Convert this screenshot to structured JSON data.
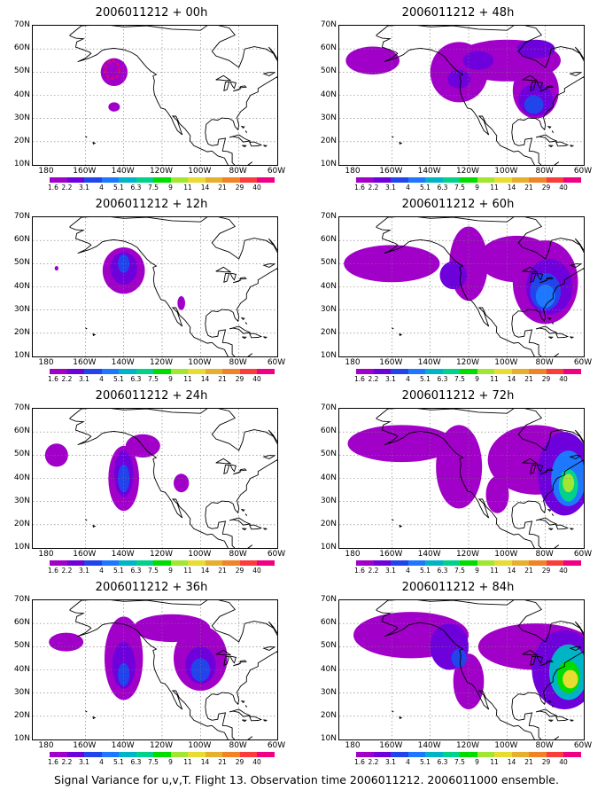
{
  "caption": "Signal Variance for u,v,T. Flight 13. Observation time 2006011212. 2006011000 ensemble.",
  "y_ticks": [
    "70N",
    "60N",
    "50N",
    "40N",
    "30N",
    "20N",
    "10N"
  ],
  "x_ticks": [
    "180",
    "160W",
    "140W",
    "120W",
    "100W",
    "80W",
    "60W"
  ],
  "colorbar": {
    "labels": [
      "1.6",
      "2.2",
      "3.1",
      "4",
      "5.1",
      "6.3",
      "7.5",
      "9",
      "11",
      "14",
      "21",
      "29",
      "40"
    ],
    "colors": [
      "#a000c8",
      "#6e00dc",
      "#2145eb",
      "#1e78ff",
      "#00b4c8",
      "#00d28c",
      "#00dc00",
      "#a0e632",
      "#e6dc32",
      "#e6af2d",
      "#f08228",
      "#fa3c3c",
      "#f00082"
    ]
  },
  "panels": [
    {
      "title": "2006011212 + 00h"
    },
    {
      "title": "2006011212 + 48h"
    },
    {
      "title": "2006011212 + 12h"
    },
    {
      "title": "2006011212 + 60h"
    },
    {
      "title": "2006011212 + 24h"
    },
    {
      "title": "2006011212 + 72h"
    },
    {
      "title": "2006011212 + 36h"
    },
    {
      "title": "2006011212 + 84h"
    }
  ]
}
